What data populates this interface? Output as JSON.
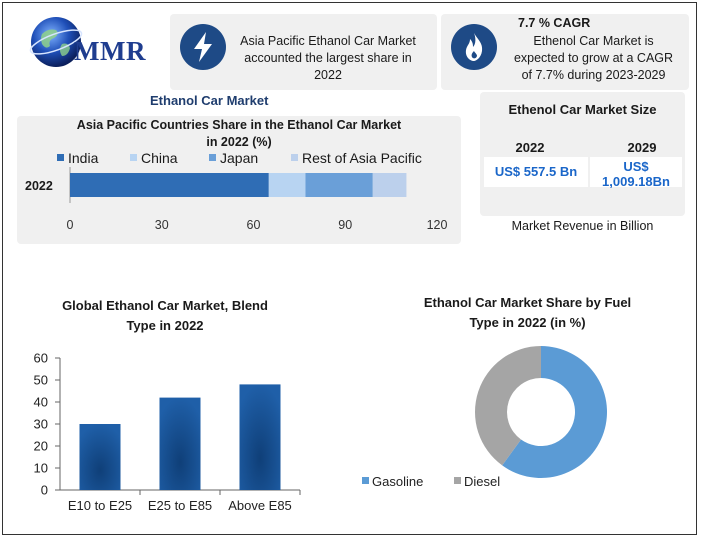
{
  "logo": {
    "text": "MMR"
  },
  "info_box_1": {
    "text_lines": [
      "Asia Pacific Ethanol Car Market",
      "accounted the largest share in",
      "2022"
    ],
    "icon": "lightning-bolt-icon"
  },
  "info_box_2": {
    "title": "7.7 % CAGR",
    "text_lines": [
      "Ethenol Car Market is",
      "expected to grow at a CAGR",
      "of 7.7% during 2023-2029"
    ],
    "icon": "flame-icon"
  },
  "section_title": "Ethanol Car Market",
  "market_size": {
    "title": "Ethenol Car Market Size",
    "years": [
      "2022",
      "2029"
    ],
    "values": [
      "US$ 557.5 Bn",
      "US$",
      "1,009.18Bn"
    ],
    "caption": "Market Revenue in Billion"
  },
  "chart_data": [
    {
      "type": "bar",
      "orientation": "horizontal",
      "stacked": true,
      "title": "Asia Pacific Countries Share in the Ethanol Car Market in 2022 (%)",
      "title_lines": [
        "Asia Pacific Countries Share in the Ethanol Car Market",
        "in 2022 (%)"
      ],
      "categories": [
        "2022"
      ],
      "series": [
        {
          "name": "India",
          "values": [
            65
          ],
          "color": "#2f6db5"
        },
        {
          "name": "China",
          "values": [
            12
          ],
          "color": "#b8d4f2"
        },
        {
          "name": "Japan",
          "values": [
            22
          ],
          "color": "#6a9fd8"
        },
        {
          "name": "Rest of Asia Pacific",
          "values": [
            11
          ],
          "color": "#bcd0ec"
        }
      ],
      "xlim": [
        0,
        120
      ],
      "xticks": [
        "0",
        "30",
        "60",
        "90",
        "120"
      ],
      "legend": "top"
    },
    {
      "type": "bar",
      "title": "Global Ethanol Car Market, Blend Type in 2022",
      "title_lines": [
        "Global Ethanol Car Market, Blend",
        "Type in 2022"
      ],
      "categories": [
        "E10 to E25",
        "E25 to E85",
        "Above E85"
      ],
      "values": [
        30,
        42,
        48
      ],
      "ylim": [
        0,
        60
      ],
      "yticks": [
        "0",
        "10",
        "20",
        "30",
        "40",
        "50",
        "60"
      ],
      "color": "#1f5fa8"
    },
    {
      "type": "pie",
      "donut": true,
      "title": "Ethanol Car Market Share by Fuel Type in 2022 (in %)",
      "title_lines": [
        "Ethanol Car Market Share by Fuel",
        "Type in 2022 (in %)"
      ],
      "labels": [
        "Gasoline",
        "Diesel"
      ],
      "values": [
        60,
        40
      ],
      "colors": [
        "#5b9bd5",
        "#a5a5a5"
      ],
      "legend": "bottom"
    }
  ]
}
